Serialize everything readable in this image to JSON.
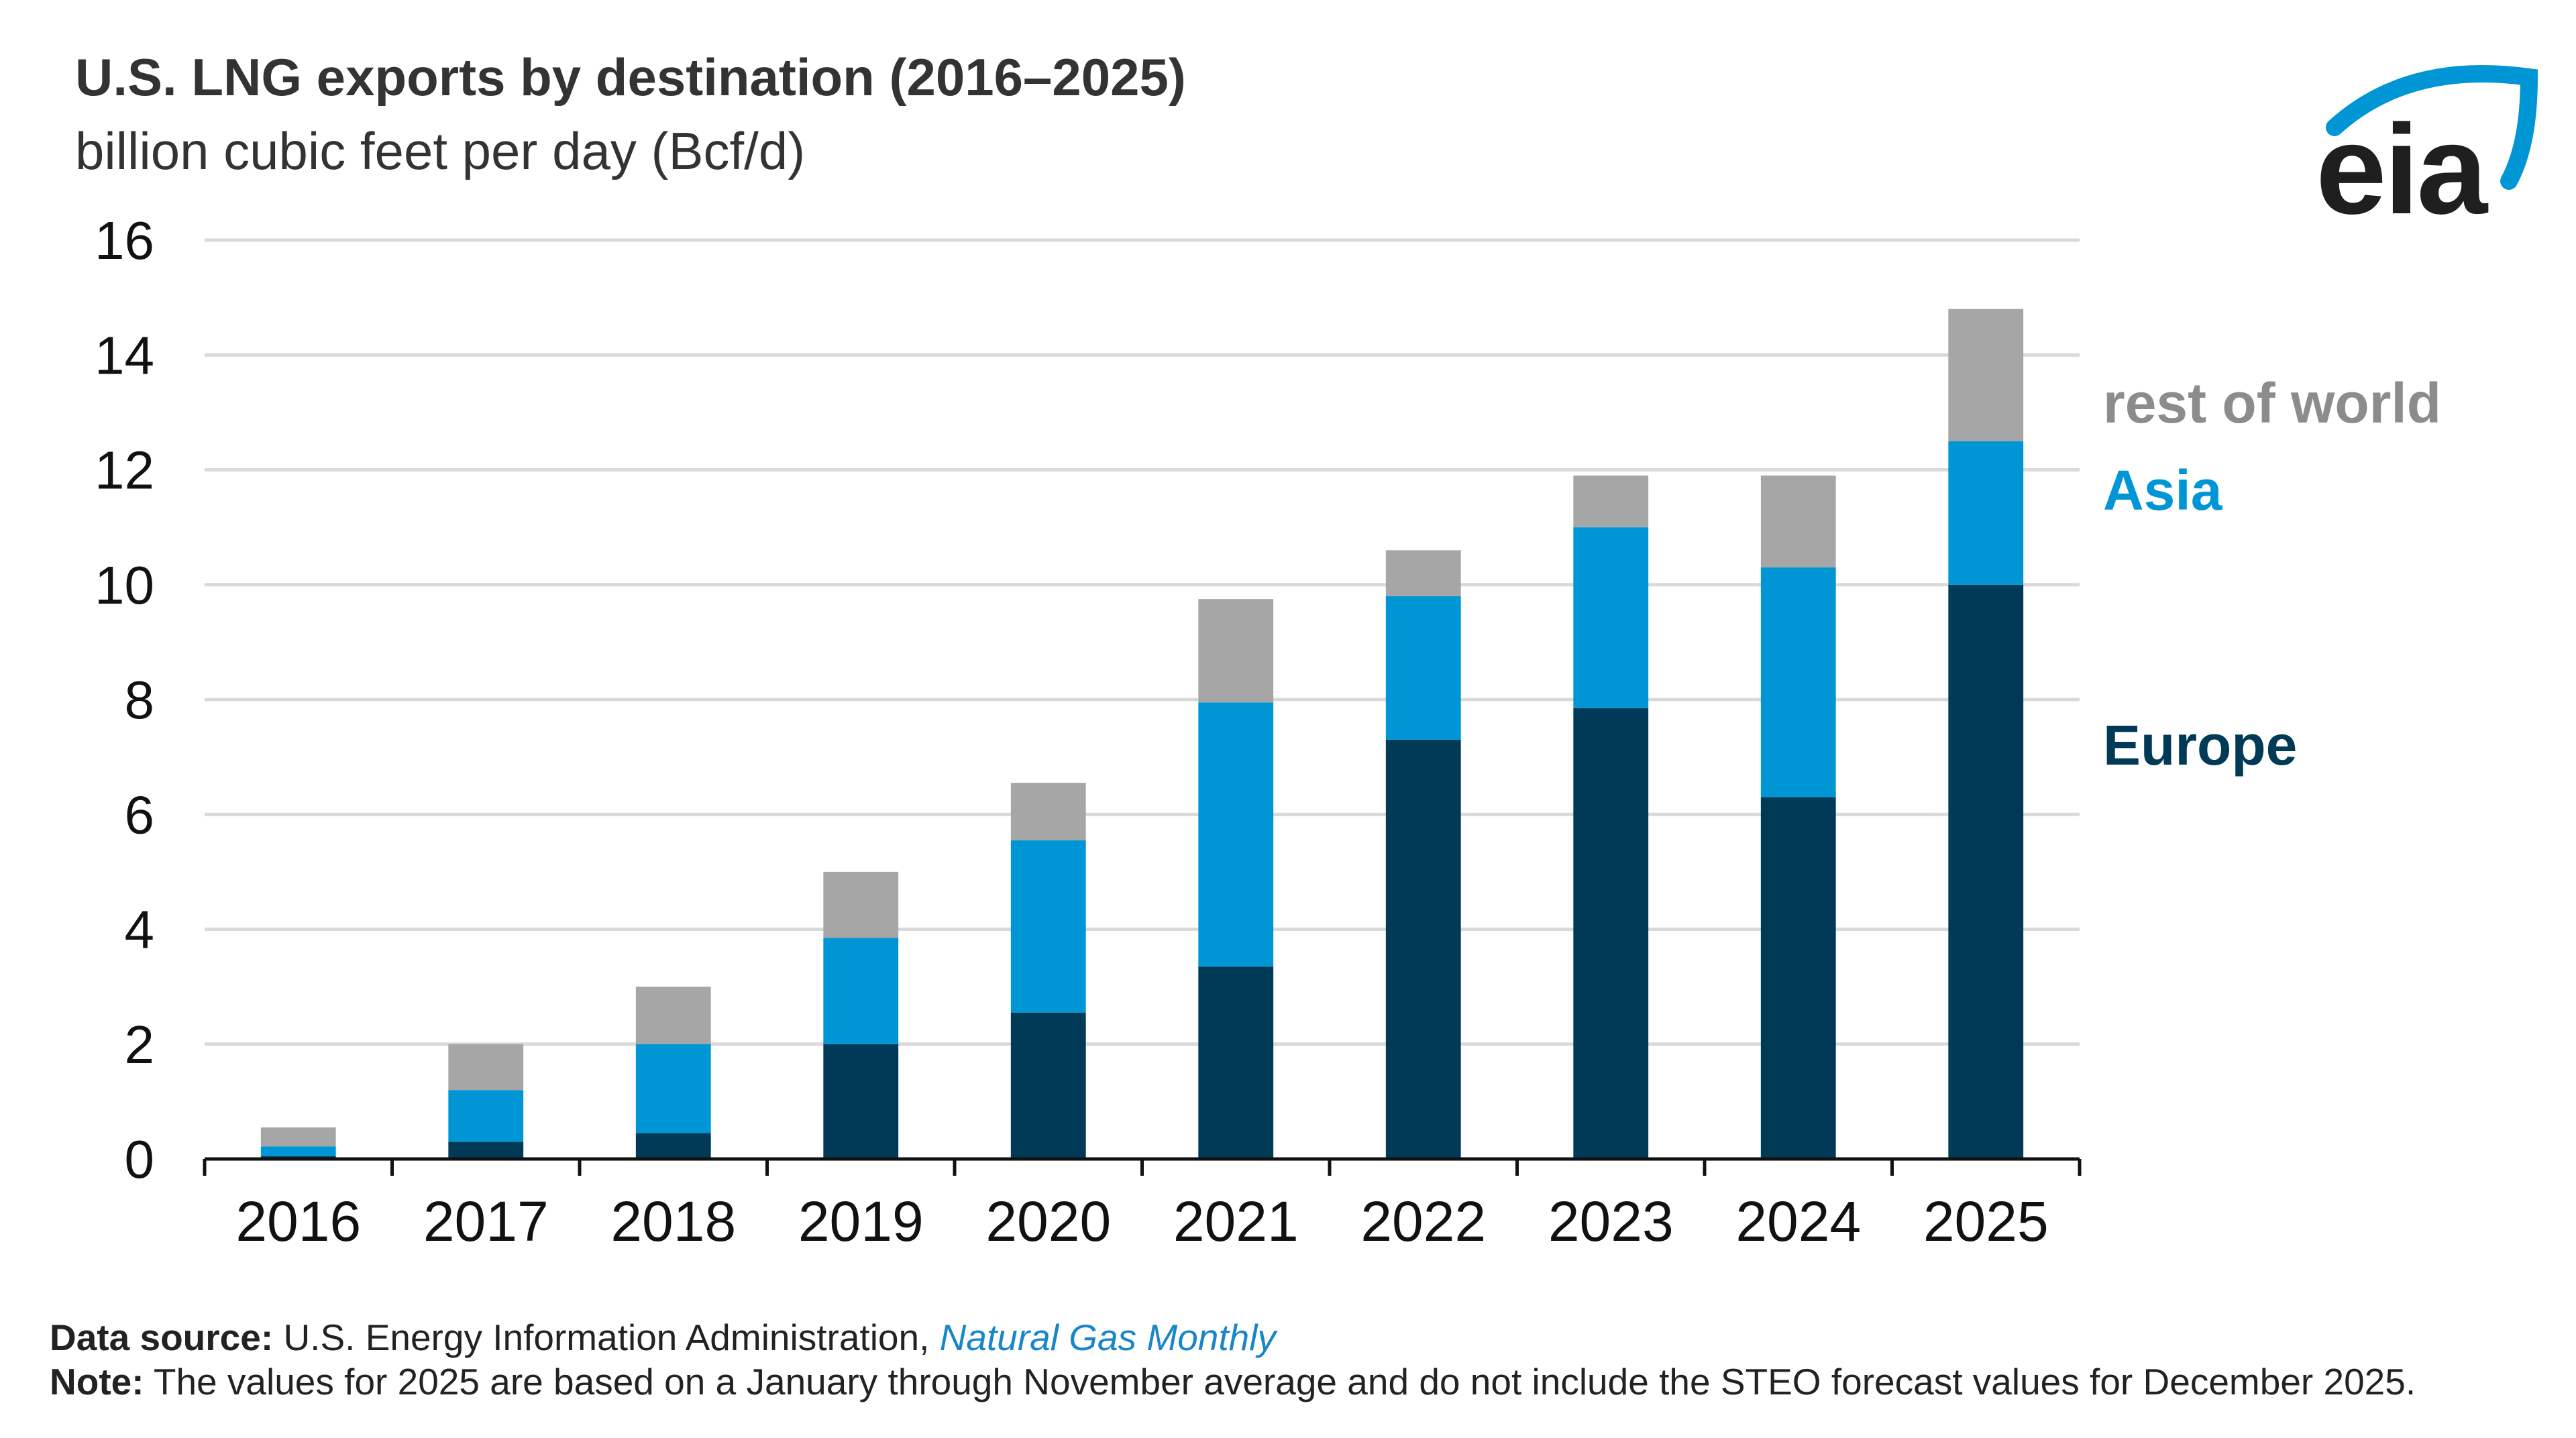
{
  "chart_data": {
    "type": "bar",
    "stacked": true,
    "title": "U.S. LNG exports by destination (2016–2025)",
    "subtitle": "billion cubic feet per day (Bcf/d)",
    "categories": [
      "2016",
      "2017",
      "2018",
      "2019",
      "2020",
      "2021",
      "2022",
      "2023",
      "2024",
      "2025"
    ],
    "series": [
      {
        "name": "Europe",
        "color": "#003a56",
        "values": [
          0.05,
          0.3,
          0.45,
          2.0,
          2.55,
          3.35,
          7.3,
          7.85,
          6.3,
          10.0
        ]
      },
      {
        "name": "Asia",
        "color": "#0096d6",
        "values": [
          0.17,
          0.9,
          1.55,
          1.85,
          3.0,
          4.6,
          2.5,
          3.15,
          4.0,
          2.5
        ]
      },
      {
        "name": "rest of world",
        "color": "#a6a6a6",
        "values": [
          0.33,
          0.8,
          1.0,
          1.15,
          1.0,
          1.8,
          0.8,
          0.9,
          1.6,
          2.3
        ]
      }
    ],
    "legend": [
      {
        "label": "rest of world",
        "color": "#8c8c8c"
      },
      {
        "label": "Asia",
        "color": "#0096d6"
      },
      {
        "label": "Europe",
        "color": "#003a56"
      }
    ],
    "ylim": [
      0,
      16
    ],
    "yticks": [
      0,
      2,
      4,
      6,
      8,
      10,
      12,
      14,
      16
    ],
    "xlabel": "",
    "ylabel": "",
    "grid": true,
    "legend_position": "right"
  },
  "logo": {
    "text": "eia",
    "arc_color": "#0096d6"
  },
  "footer": {
    "source_label": "Data source:",
    "source_text": "U.S. Energy Information Administration,",
    "source_link": "Natural Gas Monthly",
    "note_label": "Note:",
    "note_text": "The values for 2025 are based on a January through November average and do not include the STEO forecast values for December 2025."
  }
}
